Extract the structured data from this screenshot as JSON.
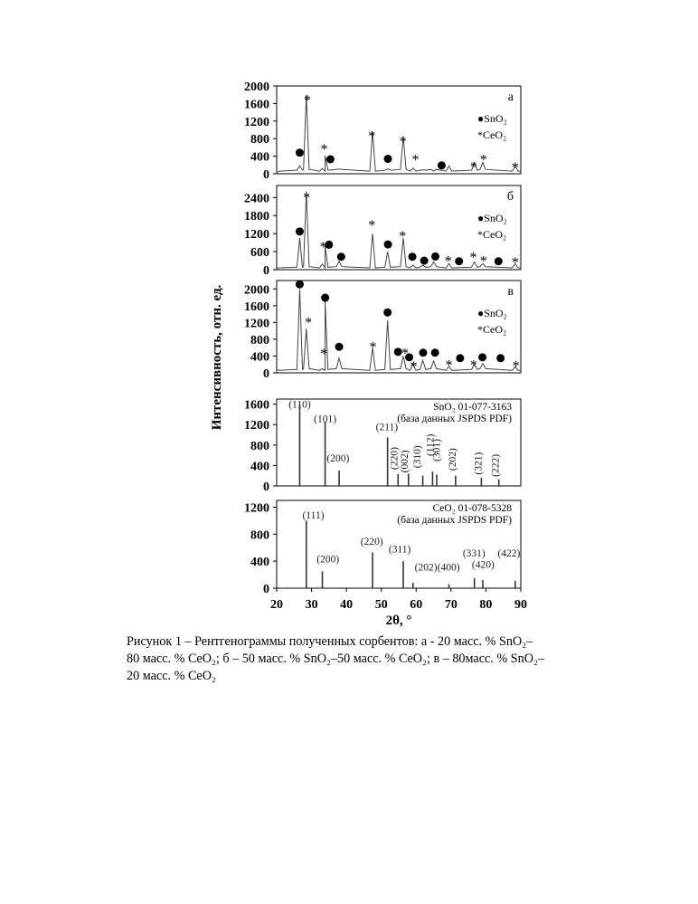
{
  "figure": {
    "ylabel": "Интенсивность, отн. ед.",
    "xlabel": "2θ, °",
    "x_ticks": [
      "20",
      "30",
      "40",
      "50",
      "60",
      "70",
      "80",
      "90"
    ]
  },
  "caption": {
    "line1": "Рисунок 1 – Рентгенограммы полученных сорбентов: а - 20 масс. % SnO₂–",
    "line2": "80 масс. % CeO₂; б – 50 масс. % SnO₂–50 масс. % CeO₂; в – 80масс. % SnO₂–",
    "line3": "20 масс. % CeO₂"
  },
  "chart_data": [
    {
      "type": "line",
      "panel_label": "а",
      "legend": [
        "●SnO₂",
        "*CeO₂"
      ],
      "xlim": [
        20,
        90
      ],
      "ylim": [
        0,
        2000
      ],
      "y_ticks": [
        "0",
        "400",
        "800",
        "1200",
        "1600",
        "2000"
      ],
      "series": [
        {
          "x": [
            20,
            26.6,
            28.5,
            33.1,
            33.9,
            37.9,
            47.5,
            51.8,
            56.3,
            59.1,
            61.9,
            65.0,
            69.4,
            76.7,
            79.1,
            88.4
          ],
          "y": [
            30,
            180,
            1800,
            120,
            410,
            110,
            950,
            110,
            850,
            130,
            90,
            60,
            180,
            250,
            260,
            180
          ]
        }
      ],
      "markers": [
        {
          "symbol": "●",
          "x": 26.6,
          "y": 480
        },
        {
          "symbol": "*",
          "x": 28.8,
          "y": 1730
        },
        {
          "symbol": "*",
          "x": 33.6,
          "y": 620
        },
        {
          "symbol": "●",
          "x": 35.4,
          "y": 330
        },
        {
          "symbol": "*",
          "x": 47.3,
          "y": 920
        },
        {
          "symbol": "●",
          "x": 51.9,
          "y": 340
        },
        {
          "symbol": "*",
          "x": 56.2,
          "y": 790
        },
        {
          "symbol": "*",
          "x": 59.8,
          "y": 380
        },
        {
          "symbol": "●",
          "x": 67.3,
          "y": 190
        },
        {
          "symbol": "*",
          "x": 76.5,
          "y": 220
        },
        {
          "symbol": "*",
          "x": 79.3,
          "y": 380
        },
        {
          "symbol": "*",
          "x": 88.4,
          "y": 210
        }
      ]
    },
    {
      "type": "line",
      "panel_label": "б",
      "legend": [
        "●SnO₂",
        "*CeO₂"
      ],
      "xlim": [
        20,
        90
      ],
      "ylim": [
        0,
        2800
      ],
      "y_ticks": [
        "0",
        "600",
        "1200",
        "1800",
        "2400"
      ],
      "series": [
        {
          "x": [
            20,
            26.6,
            28.5,
            33.1,
            33.9,
            37.9,
            47.5,
            51.8,
            56.3,
            59.1,
            61.9,
            65.0,
            69.4,
            76.7,
            79.1,
            88.4
          ],
          "y": [
            60,
            1050,
            2600,
            180,
            800,
            280,
            1200,
            600,
            1050,
            150,
            150,
            260,
            200,
            260,
            200,
            200
          ]
        }
      ],
      "markers": [
        {
          "symbol": "●",
          "x": 26.6,
          "y": 1270
        },
        {
          "symbol": "*",
          "x": 28.6,
          "y": 2480
        },
        {
          "symbol": "*",
          "x": 33.4,
          "y": 850
        },
        {
          "symbol": "●",
          "x": 35.0,
          "y": 830
        },
        {
          "symbol": "●",
          "x": 38.5,
          "y": 430
        },
        {
          "symbol": "*",
          "x": 47.3,
          "y": 1570
        },
        {
          "symbol": "●",
          "x": 51.9,
          "y": 840
        },
        {
          "symbol": "*",
          "x": 56.1,
          "y": 1210
        },
        {
          "symbol": "●",
          "x": 58.9,
          "y": 430
        },
        {
          "symbol": "●",
          "x": 62.3,
          "y": 300
        },
        {
          "symbol": "●",
          "x": 65.5,
          "y": 440
        },
        {
          "symbol": "*",
          "x": 69.2,
          "y": 380
        },
        {
          "symbol": "●",
          "x": 72.3,
          "y": 280
        },
        {
          "symbol": "*",
          "x": 76.4,
          "y": 490
        },
        {
          "symbol": "*",
          "x": 79.3,
          "y": 370
        },
        {
          "symbol": "●",
          "x": 83.6,
          "y": 280
        },
        {
          "symbol": "*",
          "x": 88.4,
          "y": 330
        }
      ]
    },
    {
      "type": "line",
      "panel_label": "в",
      "legend": [
        "●SnO₂",
        "*CeO₂"
      ],
      "xlim": [
        20,
        90
      ],
      "ylim": [
        0,
        2200
      ],
      "y_ticks": [
        "0",
        "400",
        "800",
        "1200",
        "1600",
        "2000"
      ],
      "series": [
        {
          "x": [
            20,
            26.6,
            28.5,
            33.1,
            33.9,
            37.9,
            47.5,
            51.8,
            56.3,
            59.1,
            61.9,
            65.0,
            69.4,
            76.7,
            79.1,
            88.4
          ],
          "y": [
            80,
            2000,
            1050,
            100,
            1700,
            350,
            600,
            1250,
            400,
            220,
            300,
            280,
            150,
            200,
            220,
            150
          ]
        }
      ],
      "markers": [
        {
          "symbol": "●",
          "x": 26.6,
          "y": 2110
        },
        {
          "symbol": "*",
          "x": 29.1,
          "y": 1260
        },
        {
          "symbol": "●",
          "x": 33.9,
          "y": 1790
        },
        {
          "symbol": "*",
          "x": 33.5,
          "y": 520
        },
        {
          "symbol": "●",
          "x": 37.9,
          "y": 620
        },
        {
          "symbol": "*",
          "x": 47.6,
          "y": 680
        },
        {
          "symbol": "●",
          "x": 51.8,
          "y": 1440
        },
        {
          "symbol": "●",
          "x": 54.8,
          "y": 500
        },
        {
          "symbol": "*",
          "x": 56.8,
          "y": 530
        },
        {
          "symbol": "●",
          "x": 58.0,
          "y": 370
        },
        {
          "symbol": "*",
          "x": 59.3,
          "y": 220
        },
        {
          "symbol": "●",
          "x": 62.0,
          "y": 480
        },
        {
          "symbol": "●",
          "x": 65.4,
          "y": 480
        },
        {
          "symbol": "*",
          "x": 69.4,
          "y": 250
        },
        {
          "symbol": "●",
          "x": 72.6,
          "y": 350
        },
        {
          "symbol": "*",
          "x": 76.5,
          "y": 250
        },
        {
          "symbol": "●",
          "x": 79.0,
          "y": 370
        },
        {
          "symbol": "●",
          "x": 84.2,
          "y": 350
        },
        {
          "symbol": "*",
          "x": 88.6,
          "y": 230
        }
      ]
    },
    {
      "type": "bar",
      "panel_label": "SnO₂ 01-077-3163",
      "source": "(база данных JSPDS PDF)",
      "xlim": [
        20,
        90
      ],
      "ylim": [
        0,
        1700
      ],
      "y_ticks": [
        "0",
        "400",
        "800",
        "1200",
        "1600"
      ],
      "x": [
        26.6,
        33.9,
        37.9,
        51.8,
        54.8,
        57.8,
        61.9,
        64.7,
        65.9,
        71.3,
        78.7,
        83.7
      ],
      "values": [
        1600,
        1250,
        300,
        950,
        230,
        240,
        200,
        280,
        220,
        200,
        160,
        130
      ],
      "peak_labels": [
        {
          "text": "(110)",
          "x": 26.6,
          "y": 1530
        },
        {
          "text": "(101)",
          "x": 33.9,
          "y": 1250
        },
        {
          "text": "(200)",
          "x": 37.6,
          "y": 480
        },
        {
          "text": "(211)",
          "x": 51.6,
          "y": 1090
        },
        {
          "text": "(220)",
          "x": 54.6,
          "y": 540
        },
        {
          "text": "(002)",
          "x": 57.6,
          "y": 480
        },
        {
          "text": "(310)",
          "x": 61.2,
          "y": 570
        },
        {
          "text": "(112)",
          "x": 65.0,
          "y": 800
        },
        {
          "text": "(301)",
          "x": 66.8,
          "y": 700
        },
        {
          "text": "(202)",
          "x": 71.3,
          "y": 520
        },
        {
          "text": "(321)",
          "x": 78.7,
          "y": 440
        },
        {
          "text": "(222)",
          "x": 83.7,
          "y": 400
        }
      ]
    },
    {
      "type": "bar",
      "panel_label": "CeO₂ 01-078-5328",
      "source": "(база данных JSPDS PDF)",
      "xlim": [
        20,
        90
      ],
      "ylim": [
        0,
        1300
      ],
      "y_ticks": [
        "0",
        "400",
        "800",
        "1200"
      ],
      "x": [
        28.5,
        33.1,
        47.5,
        56.3,
        59.1,
        69.4,
        76.7,
        79.1,
        88.4
      ],
      "values": [
        1000,
        250,
        530,
        400,
        80,
        60,
        150,
        120,
        110
      ],
      "peak_labels": [
        {
          "text": "(111)",
          "x": 30.5,
          "y": 1030
        },
        {
          "text": "(200)",
          "x": 34.7,
          "y": 380
        },
        {
          "text": "(220)",
          "x": 47.3,
          "y": 640
        },
        {
          "text": "(311)",
          "x": 55.3,
          "y": 530
        },
        {
          "text": "(202)",
          "x": 62.8,
          "y": 260
        },
        {
          "text": "(400)",
          "x": 69.3,
          "y": 260
        },
        {
          "text": "(331)",
          "x": 76.6,
          "y": 470
        },
        {
          "text": "(420)",
          "x": 79.2,
          "y": 300
        },
        {
          "text": "(422)",
          "x": 86.6,
          "y": 470
        }
      ]
    }
  ]
}
